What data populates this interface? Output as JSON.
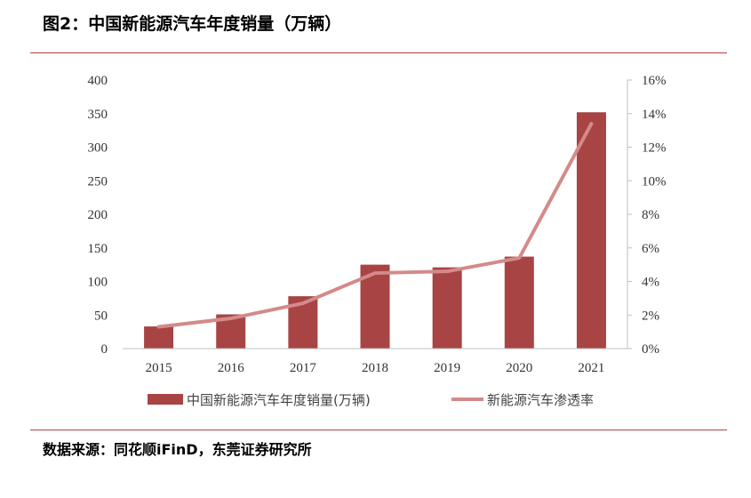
{
  "figure": {
    "title": "图2：中国新能源汽车年度销量（万辆）",
    "source": "数据来源：同花顺iFinD，东莞证券研究所"
  },
  "chart_data": {
    "type": "bar",
    "categories": [
      "2015",
      "2016",
      "2017",
      "2018",
      "2019",
      "2020",
      "2021"
    ],
    "series": [
      {
        "name": "中国新能源汽车年度销量(万辆)",
        "type": "bar",
        "axis": "left",
        "values": [
          33,
          51,
          78,
          125,
          121,
          137,
          352
        ],
        "color": "#a84444"
      },
      {
        "name": "新能源汽车渗透率",
        "type": "line",
        "axis": "right",
        "values": [
          1.3,
          1.8,
          2.7,
          4.5,
          4.6,
          5.4,
          13.4
        ],
        "color": "#d48a8a"
      }
    ],
    "ylim_left": [
      0,
      400
    ],
    "yticks_left": [
      "0",
      "50",
      "100",
      "150",
      "200",
      "250",
      "300",
      "350",
      "400"
    ],
    "ylim_right": [
      0,
      16
    ],
    "yticks_right": [
      "0%",
      "2%",
      "4%",
      "6%",
      "8%",
      "10%",
      "12%",
      "14%",
      "16%"
    ],
    "grid": false,
    "legend_position": "bottom"
  }
}
